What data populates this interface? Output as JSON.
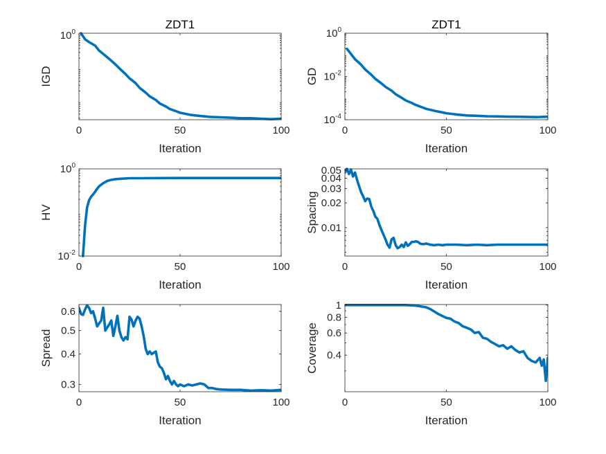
{
  "figure": {
    "line_color": "#0072bd",
    "axis_color": "#262626"
  },
  "chart_data": [
    {
      "type": "line",
      "title": "ZDT1",
      "xlabel": "Iteration",
      "ylabel": "IGD",
      "xlim": [
        0,
        100
      ],
      "ylim": [
        0.0027,
        1.15
      ],
      "yscale": "log",
      "grid": false,
      "xticks": [
        0,
        50,
        100
      ],
      "x_tick_labels": [
        "0",
        "50",
        "100"
      ],
      "yticks": [
        1
      ],
      "y_tick_labels": [
        {
          "base": "10",
          "exp": "0"
        }
      ],
      "x": [
        1,
        3,
        5,
        8,
        10,
        12,
        15,
        18,
        20,
        23,
        25,
        28,
        30,
        33,
        35,
        38,
        40,
        43,
        45,
        48,
        50,
        55,
        60,
        65,
        70,
        75,
        80,
        85,
        90,
        95,
        100
      ],
      "y": [
        1.15,
        0.75,
        0.62,
        0.48,
        0.34,
        0.27,
        0.19,
        0.13,
        0.098,
        0.066,
        0.049,
        0.035,
        0.025,
        0.018,
        0.0138,
        0.0108,
        0.0084,
        0.0068,
        0.0057,
        0.0049,
        0.0044,
        0.0038,
        0.0035,
        0.0033,
        0.0032,
        0.0031,
        0.003,
        0.003,
        0.0029,
        0.0028,
        0.0029
      ]
    },
    {
      "type": "line",
      "title": "ZDT1",
      "xlabel": "Iteration",
      "ylabel": "GD",
      "xlim": [
        0,
        100
      ],
      "ylim": [
        0.0001,
        1
      ],
      "yscale": "log",
      "grid": false,
      "xticks": [
        0,
        50,
        100
      ],
      "x_tick_labels": [
        "0",
        "50",
        "100"
      ],
      "yticks": [
        1,
        0.01,
        0.0001
      ],
      "y_tick_labels": [
        {
          "base": "10",
          "exp": "0"
        },
        {
          "base": "10",
          "exp": "-2"
        },
        {
          "base": "10",
          "exp": "-4"
        }
      ],
      "x": [
        1,
        3,
        5,
        8,
        10,
        13,
        15,
        18,
        20,
        23,
        25,
        28,
        30,
        33,
        35,
        38,
        40,
        45,
        50,
        55,
        60,
        65,
        70,
        75,
        80,
        85,
        90,
        95,
        100
      ],
      "y": [
        0.19,
        0.11,
        0.063,
        0.035,
        0.021,
        0.012,
        0.0077,
        0.0048,
        0.0033,
        0.0022,
        0.0015,
        0.00103,
        0.00078,
        0.00059,
        0.00048,
        0.00038,
        0.00032,
        0.00025,
        0.0002,
        0.000175,
        0.000158,
        0.000152,
        0.000145,
        0.000142,
        0.000138,
        0.000137,
        0.000135,
        0.000132,
        0.000138
      ]
    },
    {
      "type": "line",
      "xlabel": "Iteration",
      "ylabel": "HV",
      "xlim": [
        0,
        100
      ],
      "ylim": [
        0.01,
        1
      ],
      "yscale": "log",
      "grid": false,
      "xticks": [
        0,
        50,
        100
      ],
      "x_tick_labels": [
        "0",
        "50",
        "100"
      ],
      "yticks": [
        1,
        0.01
      ],
      "y_tick_labels": [
        {
          "base": "10",
          "exp": "0"
        },
        {
          "base": "10",
          "exp": "-2"
        }
      ],
      "x": [
        2,
        3,
        4,
        5,
        6,
        7,
        8,
        9,
        10,
        12,
        14,
        16,
        18,
        20,
        25,
        30,
        40,
        50,
        60,
        70,
        80,
        90,
        100
      ],
      "y": [
        0.01,
        0.05,
        0.13,
        0.19,
        0.23,
        0.26,
        0.3,
        0.35,
        0.4,
        0.47,
        0.53,
        0.56,
        0.58,
        0.59,
        0.61,
        0.61,
        0.615,
        0.617,
        0.618,
        0.618,
        0.618,
        0.618,
        0.618
      ]
    },
    {
      "type": "line",
      "xlabel": "Iteration",
      "ylabel": "Spacing",
      "xlim": [
        0,
        100
      ],
      "ylim": [
        0.0045,
        0.052
      ],
      "yscale": "log",
      "grid": false,
      "xticks": [
        0,
        50,
        100
      ],
      "x_tick_labels": [
        "0",
        "50",
        "100"
      ],
      "yticks": [
        0.05,
        0.04,
        0.03,
        0.02,
        0.01
      ],
      "y_tick_labels": [
        "0.05",
        "0.04",
        "0.03",
        "0.02",
        "0.01"
      ],
      "x": [
        0,
        1,
        2,
        3,
        4,
        5,
        6,
        7,
        8,
        9,
        10,
        11,
        12,
        13,
        14,
        15,
        16,
        17,
        18,
        19,
        20,
        21,
        22,
        23,
        24,
        25,
        26,
        27,
        28,
        29,
        30,
        31,
        32,
        33,
        34,
        35,
        36,
        37,
        38,
        39,
        40,
        42,
        44,
        46,
        48,
        50,
        55,
        60,
        65,
        70,
        75,
        80,
        85,
        90,
        95,
        100
      ],
      "y": [
        0.047,
        0.052,
        0.045,
        0.051,
        0.042,
        0.047,
        0.038,
        0.032,
        0.027,
        0.024,
        0.021,
        0.0226,
        0.0223,
        0.018,
        0.016,
        0.0136,
        0.0128,
        0.0108,
        0.0094,
        0.0082,
        0.0072,
        0.0062,
        0.0057,
        0.0072,
        0.0075,
        0.0061,
        0.0056,
        0.0058,
        0.0062,
        0.0058,
        0.0066,
        0.006,
        0.0063,
        0.0067,
        0.0067,
        0.0068,
        0.0067,
        0.0064,
        0.0063,
        0.0063,
        0.0064,
        0.0062,
        0.0061,
        0.0062,
        0.0061,
        0.0062,
        0.0062,
        0.0061,
        0.0062,
        0.0061,
        0.0062,
        0.0062,
        0.0062,
        0.0062,
        0.0062,
        0.0062
      ]
    },
    {
      "type": "line",
      "xlabel": "Iteration",
      "ylabel": "Spread",
      "xlim": [
        0,
        100
      ],
      "ylim": [
        0.28,
        0.64
      ],
      "yscale": "log",
      "grid": false,
      "xticks": [
        0,
        50,
        100
      ],
      "x_tick_labels": [
        "0",
        "50",
        "100"
      ],
      "yticks": [
        0.6,
        0.5,
        0.4,
        0.3
      ],
      "y_tick_labels": [
        "0.6",
        "0.5",
        "0.4",
        "0.3"
      ],
      "x": [
        0,
        1,
        2,
        3,
        4,
        5,
        6,
        7,
        8,
        9,
        10,
        11,
        12,
        13,
        14,
        15,
        16,
        17,
        18,
        19,
        20,
        21,
        22,
        23,
        24,
        25,
        26,
        27,
        28,
        29,
        30,
        31,
        32,
        33,
        34,
        35,
        36,
        37,
        38,
        39,
        40,
        41,
        42,
        43,
        44,
        45,
        46,
        47,
        48,
        49,
        50,
        52,
        54,
        56,
        58,
        60,
        62,
        64,
        66,
        68,
        70,
        75,
        80,
        85,
        90,
        95,
        100
      ],
      "y": [
        0.62,
        0.585,
        0.58,
        0.61,
        0.635,
        0.62,
        0.59,
        0.6,
        0.56,
        0.52,
        0.535,
        0.55,
        0.62,
        0.5,
        0.515,
        0.53,
        0.55,
        0.475,
        0.52,
        0.575,
        0.5,
        0.47,
        0.455,
        0.47,
        0.46,
        0.57,
        0.555,
        0.52,
        0.55,
        0.57,
        0.56,
        0.52,
        0.475,
        0.42,
        0.4,
        0.41,
        0.4,
        0.405,
        0.41,
        0.37,
        0.355,
        0.35,
        0.335,
        0.315,
        0.325,
        0.31,
        0.3,
        0.31,
        0.3,
        0.295,
        0.3,
        0.295,
        0.3,
        0.297,
        0.3,
        0.303,
        0.3,
        0.29,
        0.29,
        0.287,
        0.286,
        0.285,
        0.285,
        0.283,
        0.284,
        0.283,
        0.285
      ]
    },
    {
      "type": "line",
      "xlabel": "Iteration",
      "ylabel": "Coverage",
      "xlim": [
        0,
        100
      ],
      "ylim": [
        0.205,
        1.01
      ],
      "yscale": "log",
      "grid": false,
      "xticks": [
        0,
        50,
        100
      ],
      "x_tick_labels": [
        "0",
        "50",
        "100"
      ],
      "yticks": [
        1,
        0.8,
        0.6,
        0.4
      ],
      "y_tick_labels": [
        "1",
        "0.8",
        "0.6",
        "0.4"
      ],
      "x": [
        0,
        10,
        20,
        30,
        35,
        40,
        42,
        44,
        46,
        48,
        50,
        52,
        54,
        56,
        58,
        60,
        62,
        64,
        66,
        68,
        70,
        72,
        74,
        76,
        78,
        80,
        82,
        84,
        86,
        88,
        90,
        92,
        94,
        96,
        97,
        98,
        99,
        100
      ],
      "y": [
        1,
        1,
        1,
        1,
        0.99,
        0.96,
        0.93,
        0.89,
        0.85,
        0.82,
        0.79,
        0.78,
        0.74,
        0.72,
        0.68,
        0.66,
        0.64,
        0.6,
        0.61,
        0.55,
        0.54,
        0.51,
        0.49,
        0.47,
        0.48,
        0.45,
        0.47,
        0.44,
        0.42,
        0.43,
        0.38,
        0.36,
        0.35,
        0.38,
        0.33,
        0.37,
        0.25,
        0.38
      ]
    }
  ]
}
